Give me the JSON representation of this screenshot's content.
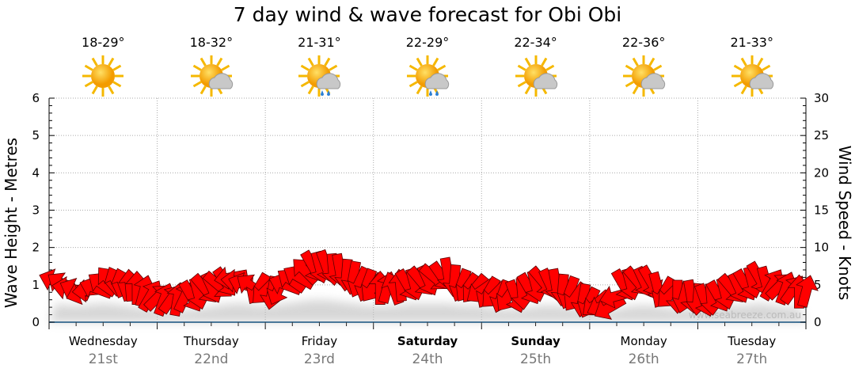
{
  "title": "7 day wind & wave forecast for Obi Obi",
  "days": [
    {
      "name": "Wednesday",
      "date": "21st",
      "temp": "18-29°",
      "icon": "sunny-icon",
      "bold": false
    },
    {
      "name": "Thursday",
      "date": "22nd",
      "temp": "18-32°",
      "icon": "partly-cloudy-icon",
      "bold": false
    },
    {
      "name": "Friday",
      "date": "23rd",
      "temp": "21-31°",
      "icon": "showers-icon",
      "bold": false
    },
    {
      "name": "Saturday",
      "date": "24th",
      "temp": "22-29°",
      "icon": "showers-icon",
      "bold": true
    },
    {
      "name": "Sunday",
      "date": "25th",
      "temp": "22-34°",
      "icon": "partly-cloudy-icon",
      "bold": true
    },
    {
      "name": "Monday",
      "date": "26th",
      "temp": "22-36°",
      "icon": "partly-cloudy-icon",
      "bold": false
    },
    {
      "name": "Tuesday",
      "date": "27th",
      "temp": "21-33°",
      "icon": "partly-cloudy-icon",
      "bold": false
    }
  ],
  "watermark": "www.seabreeze.com.au",
  "chart_data": {
    "type": "line",
    "title": "7 day wind & wave forecast for Obi Obi",
    "ylabel": "Wave Height - Metres",
    "y2label": "Wind Speed - Knots",
    "ylim": [
      0,
      6
    ],
    "y2lim": [
      0,
      30
    ],
    "yticks": [
      "0",
      "1",
      "2",
      "3",
      "4",
      "5",
      "6"
    ],
    "y2ticks": [
      "0",
      "5",
      "10",
      "15",
      "20",
      "25",
      "30"
    ],
    "grid": true,
    "x_interval_hours": 3,
    "series": [
      {
        "name": "Wind speed (knots)",
        "color": "#ff0000",
        "values": [
          5.5,
          4.5,
          4,
          4.5,
          5.5,
          5,
          4.5,
          3.5,
          3,
          3,
          3.5,
          4.5,
          5,
          6,
          5,
          4.5,
          4,
          5,
          6,
          7.5,
          7.5,
          7,
          6,
          5,
          4.5,
          4.5,
          5,
          5.5,
          6,
          6.5,
          5,
          4.5,
          4,
          3.5,
          3.5,
          4.5,
          5.5,
          5,
          4,
          3,
          2.5,
          2,
          5,
          5.5,
          5.5,
          4,
          3.5,
          3.5,
          3,
          3.5,
          4.5,
          5,
          6,
          5,
          4.5,
          4
        ],
        "direction_deg": [
          200,
          190,
          160,
          200,
          230,
          250,
          270,
          300,
          290,
          280,
          60,
          50,
          40,
          170,
          200,
          120,
          100,
          200,
          210,
          60,
          70,
          80,
          100,
          110,
          270,
          250,
          60,
          50,
          40,
          80,
          110,
          130,
          120,
          110,
          70,
          60,
          50,
          80,
          110,
          100,
          140,
          150,
          60,
          50,
          60,
          120,
          90,
          80,
          70,
          60,
          50,
          60,
          60,
          300,
          290,
          270
        ]
      },
      {
        "name": "Wave height (m)",
        "color": "#cccccc",
        "values": [
          0.5,
          0.45,
          0.45,
          0.5,
          0.5,
          0.45,
          0.4,
          0.35,
          0.3,
          0.3,
          0.35,
          0.4,
          0.45,
          0.5,
          0.5,
          0.45,
          0.45,
          0.5,
          0.55,
          0.6,
          0.6,
          0.55,
          0.5,
          0.45,
          0.45,
          0.45,
          0.5,
          0.5,
          0.5,
          0.5,
          0.45,
          0.45,
          0.4,
          0.35,
          0.35,
          0.4,
          0.45,
          0.45,
          0.4,
          0.35,
          0.3,
          0.3,
          0.4,
          0.45,
          0.45,
          0.4,
          0.35,
          0.35,
          0.35,
          0.4,
          0.45,
          0.45,
          0.5,
          0.45,
          0.4,
          0.4
        ]
      }
    ]
  }
}
